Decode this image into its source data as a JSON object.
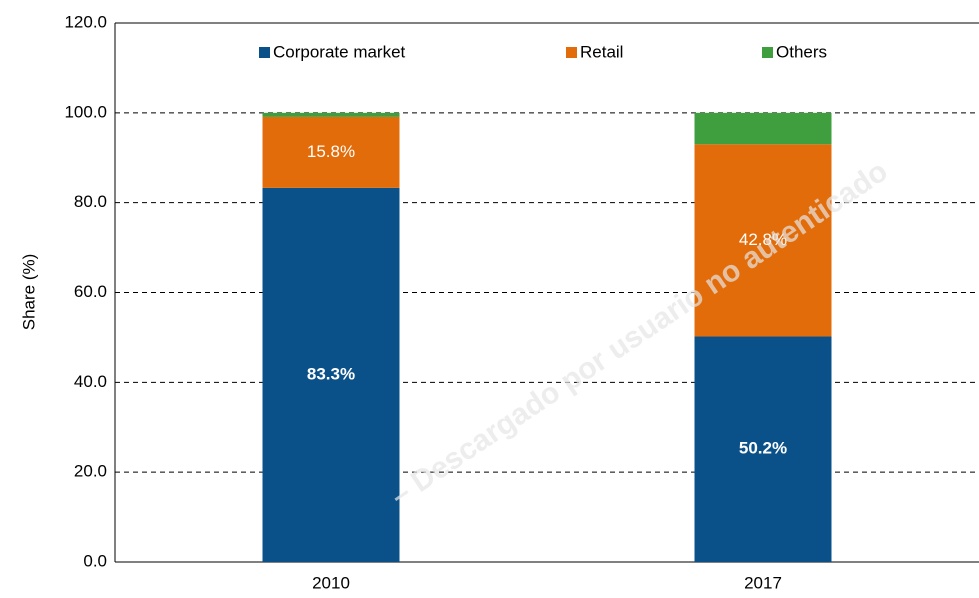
{
  "chart_data": {
    "type": "stacked_bar",
    "y_label": "Share (%)",
    "watermark": "– Descargado por usuario no autenticado",
    "categories": [
      "2010",
      "2017"
    ],
    "series": [
      {
        "name": "Corporate market",
        "color": "#0b5189",
        "values": [
          83.3,
          50.2
        ],
        "value_labels": [
          "83.3%",
          "50.2%"
        ]
      },
      {
        "name": "Retail",
        "color": "#e36c0a",
        "values": [
          15.8,
          42.8
        ],
        "value_labels": [
          "15.8%",
          "42.8%"
        ]
      },
      {
        "name": "Others",
        "color": "#3f9f3f",
        "values": [
          0.9,
          7.0
        ]
      }
    ],
    "ylim": [
      0,
      120
    ],
    "yticks": [
      {
        "value": 0,
        "label": "0.0"
      },
      {
        "value": 20,
        "label": "20.0"
      },
      {
        "value": 40,
        "label": "40.0"
      },
      {
        "value": 60,
        "label": "60.0"
      },
      {
        "value": 80,
        "label": "80.0"
      },
      {
        "value": 100,
        "label": "100.0"
      },
      {
        "value": 120,
        "label": "120.0"
      }
    ],
    "grid": true,
    "legend": "top"
  }
}
